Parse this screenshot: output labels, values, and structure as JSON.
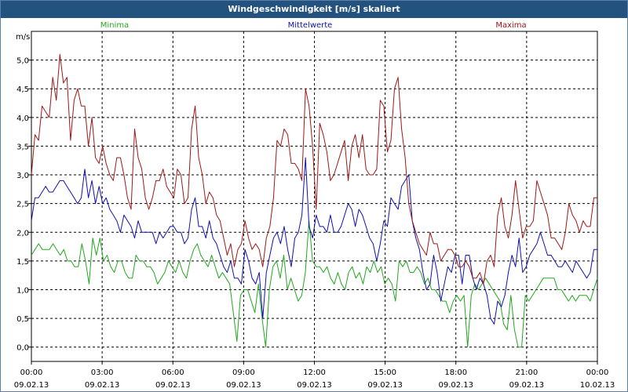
{
  "chart_data": {
    "type": "line",
    "title": "Windgeschwindigkeit [m/s] skaliert",
    "ylabel": "m/s",
    "xlabel": "",
    "ylim": [
      -0.25,
      5.5
    ],
    "xlim": [
      0,
      24
    ],
    "grid": true,
    "yticks": [
      "0,0",
      "0,5",
      "1,0",
      "1,5",
      "2,0",
      "2,5",
      "3,0",
      "3,5",
      "4,0",
      "4,5",
      "5,0"
    ],
    "ytick_values": [
      0,
      0.5,
      1,
      1.5,
      2,
      2.5,
      3,
      3.5,
      4,
      4.5,
      5
    ],
    "xticks": [
      {
        "time": "00:00",
        "date": "09.02.13"
      },
      {
        "time": "03:00",
        "date": "09.02.13"
      },
      {
        "time": "06:00",
        "date": "09.02.13"
      },
      {
        "time": "09:00",
        "date": "09.02.13"
      },
      {
        "time": "12:00",
        "date": "09.02.13"
      },
      {
        "time": "15:00",
        "date": "09.02.13"
      },
      {
        "time": "18:00",
        "date": "09.02.13"
      },
      {
        "time": "21:00",
        "date": "09.02.13"
      },
      {
        "time": "00:00",
        "date": "10.02.13"
      }
    ],
    "series": [
      {
        "name": "Minima",
        "color": "#22a81f",
        "values": [
          1.6,
          1.7,
          1.8,
          1.7,
          1.7,
          1.7,
          1.8,
          1.7,
          1.6,
          1.7,
          1.5,
          1.5,
          1.4,
          1.4,
          1.8,
          1.5,
          1.1,
          1.9,
          1.6,
          1.9,
          1.5,
          1.6,
          1.4,
          1.3,
          1.5,
          1.5,
          1.3,
          1.2,
          1.2,
          1.6,
          1.5,
          1.5,
          1.4,
          1.4,
          1.3,
          1.1,
          1.2,
          1.3,
          1.5,
          1.4,
          1.3,
          1.5,
          1.3,
          1.2,
          1.5,
          1.7,
          1.8,
          1.6,
          1.5,
          1.4,
          1.6,
          1.4,
          1.2,
          1.3,
          1.2,
          1.1,
          0.6,
          0.1,
          0.9,
          1.0,
          1.0,
          0.8,
          0.6,
          1.1,
          0.5,
          0.0,
          1.0,
          1.4,
          1.5,
          1.2,
          1.6,
          1.0,
          1.2,
          1.0,
          0.8,
          0.9,
          1.3,
          2.2,
          1.5,
          1.4,
          1.4,
          1.3,
          1.4,
          1.2,
          1.1,
          1.3,
          1.1,
          1.0,
          1.3,
          1.4,
          1.2,
          1.3,
          1.1,
          1.4,
          1.3,
          1.5,
          1.3,
          1.4,
          1.1,
          1.2,
          1.1,
          0.8,
          1.5,
          1.4,
          1.5,
          1.3,
          1.3,
          1.4,
          1.3,
          1.1,
          1.2,
          1.0,
          1.0,
          0.9,
          0.8,
          0.8,
          0.6,
          0.8,
          0.9,
          0.8,
          0.9,
          0.0,
          0.9,
          1.1,
          1.0,
          1.1,
          1.2,
          1.1,
          1.0,
          0.9,
          0.8,
          0.4,
          0.3,
          0.9,
          0.3,
          0.0,
          0.0,
          0.9,
          0.8,
          0.9,
          1.0,
          1.1,
          1.2,
          1.2,
          1.2,
          1.2,
          1.0,
          1.0,
          0.9,
          0.8,
          0.9,
          0.8,
          0.9,
          0.9,
          0.9,
          0.8,
          1.0,
          1.2
        ]
      },
      {
        "name": "Mittelwerte",
        "color": "#1010b0",
        "values": [
          2.2,
          2.6,
          2.6,
          2.7,
          2.8,
          2.7,
          2.7,
          2.8,
          2.9,
          2.9,
          2.8,
          2.7,
          2.6,
          2.5,
          2.6,
          3.1,
          2.6,
          2.9,
          2.5,
          2.8,
          2.5,
          2.6,
          2.4,
          2.3,
          2.2,
          2.0,
          2.3,
          2.2,
          2.1,
          1.9,
          2.2,
          2.0,
          2.0,
          2.0,
          2.0,
          1.8,
          2.0,
          1.9,
          2.0,
          2.1,
          2.1,
          2.0,
          2.0,
          1.8,
          1.9,
          2.4,
          2.6,
          2.1,
          2.1,
          1.9,
          2.2,
          1.9,
          1.8,
          1.6,
          1.4,
          1.3,
          1.5,
          1.2,
          1.2,
          1.1,
          1.7,
          1.5,
          1.2,
          1.1,
          1.3,
          0.5,
          1.3,
          1.6,
          1.9,
          2.0,
          1.8,
          2.1,
          1.7,
          1.4,
          1.9,
          2.0,
          2.3,
          3.3,
          2.1,
          1.9,
          2.3,
          2.1,
          2.1,
          2.0,
          2.3,
          2.0,
          2.0,
          2.1,
          2.3,
          2.5,
          2.4,
          2.1,
          2.4,
          2.3,
          2.1,
          1.9,
          1.8,
          1.5,
          1.8,
          2.2,
          2.1,
          2.6,
          2.5,
          2.4,
          2.8,
          2.9,
          3.0,
          2.2,
          1.9,
          1.7,
          1.3,
          1.0,
          1.1,
          1.6,
          1.3,
          0.8,
          1.1,
          1.4,
          1.3,
          1.6,
          1.6,
          1.1,
          1.6,
          1.6,
          1.2,
          1.0,
          1.2,
          1.1,
          0.9,
          0.5,
          0.4,
          0.8,
          0.7,
          0.9,
          1.3,
          1.6,
          1.4,
          1.9,
          1.3,
          1.4,
          1.6,
          1.7,
          1.8,
          2.0,
          1.8,
          1.6,
          1.6,
          1.5,
          1.4,
          1.4,
          1.5,
          1.4,
          1.3,
          1.5,
          1.4,
          1.3,
          1.2,
          1.3,
          1.7,
          1.7
        ]
      },
      {
        "name": "Maxima",
        "color": "#a01616",
        "values": [
          3.0,
          3.7,
          3.6,
          4.2,
          4.1,
          4.0,
          4.7,
          4.3,
          5.1,
          4.6,
          4.7,
          3.6,
          4.3,
          4.5,
          4.2,
          4.2,
          3.5,
          4.0,
          3.3,
          3.2,
          3.5,
          3.2,
          3.0,
          2.9,
          3.3,
          3.3,
          3.0,
          2.6,
          2.4,
          3.8,
          3.3,
          3.1,
          2.6,
          2.4,
          2.6,
          2.9,
          2.9,
          3.1,
          2.8,
          2.7,
          2.6,
          3.1,
          3.0,
          2.5,
          2.6,
          3.8,
          4.2,
          3.3,
          3.0,
          2.5,
          2.7,
          2.6,
          2.3,
          2.2,
          1.9,
          1.6,
          1.8,
          1.4,
          1.7,
          1.8,
          2.2,
          1.9,
          1.7,
          1.8,
          1.7,
          1.4,
          1.9,
          2.1,
          2.6,
          3.6,
          3.5,
          3.8,
          3.7,
          3.2,
          3.2,
          3.1,
          2.9,
          4.5,
          4.2,
          3.5,
          2.4,
          3.9,
          3.7,
          3.4,
          2.9,
          3.0,
          3.2,
          3.4,
          3.6,
          2.9,
          3.5,
          3.7,
          3.3,
          3.7,
          3.1,
          3.0,
          3.0,
          3.1,
          4.3,
          4.2,
          3.4,
          3.6,
          4.5,
          4.7,
          3.8,
          3.3,
          2.5,
          2.2,
          2.0,
          1.8,
          1.7,
          1.6,
          2.0,
          1.8,
          1.8,
          1.5,
          1.6,
          1.7,
          1.7,
          1.6,
          1.4,
          1.4,
          1.5,
          1.4,
          1.2,
          1.2,
          1.3,
          1.1,
          1.5,
          1.6,
          1.4,
          2.3,
          2.6,
          2.1,
          1.9,
          2.3,
          2.9,
          2.4,
          1.9,
          2.1,
          2.1,
          2.2,
          2.9,
          2.7,
          2.5,
          2.3,
          1.9,
          1.9,
          1.8,
          1.7,
          2.0,
          2.5,
          2.3,
          2.2,
          2.0,
          2.2,
          2.1,
          2.1,
          2.6,
          2.6
        ]
      }
    ]
  }
}
